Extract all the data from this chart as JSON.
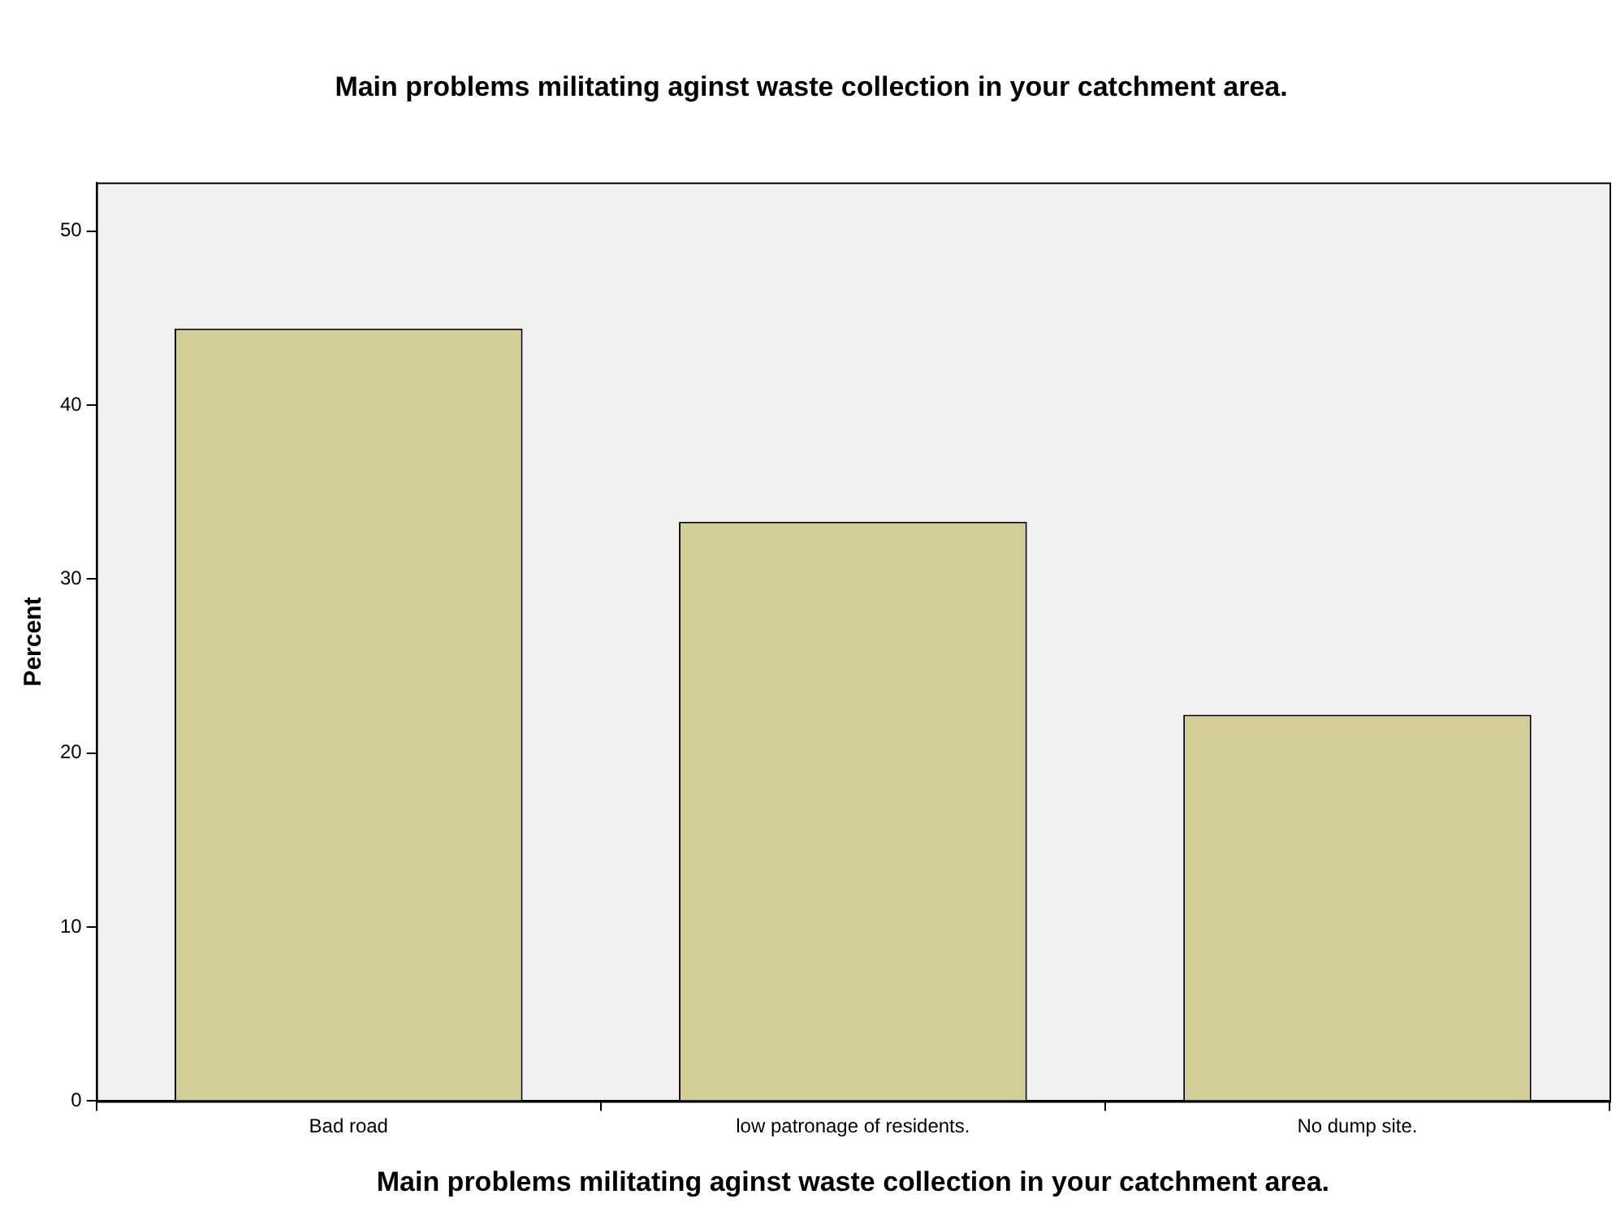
{
  "chart_data": {
    "type": "bar",
    "title": "Main problems militating aginst waste collection in your catchment area.",
    "xlabel": "Main problems militating aginst waste collection in your catchment area.",
    "ylabel": "Percent",
    "categories": [
      "Bad road",
      "low patronage of residents.",
      "No dump site."
    ],
    "values": [
      44.4,
      33.3,
      22.2
    ],
    "color": "#d3ce97",
    "ylim": [
      0,
      52.8
    ],
    "yticks": [
      0,
      10,
      20,
      30,
      40,
      50
    ],
    "grid": false,
    "legend": false
  }
}
